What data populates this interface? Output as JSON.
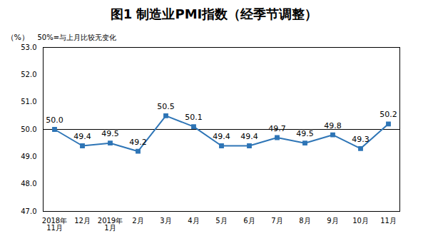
{
  "chart_data": {
    "type": "line",
    "title": "图1 制造业PMI指数（经季节调整）",
    "y_unit": "（%）",
    "annotation": "50%=与上月比较无变化",
    "reference_value": 50,
    "categories": [
      "2018年\n11月",
      "12月",
      "2019年\n1月",
      "2月",
      "3月",
      "4月",
      "5月",
      "6月",
      "7月",
      "8月",
      "9月",
      "10月",
      "11月"
    ],
    "values": [
      50.0,
      49.4,
      49.5,
      49.2,
      50.5,
      50.1,
      49.4,
      49.4,
      49.7,
      49.5,
      49.8,
      49.3,
      50.2
    ],
    "value_labels": [
      "50.0",
      "49.4",
      "49.5",
      "49.2",
      "50.5",
      "50.1",
      "49.4",
      "49.4",
      "49.7",
      "49.5",
      "49.8",
      "49.3",
      "50.2"
    ],
    "color": "#2e75b6",
    "marker": "square",
    "data_labels": true,
    "grid": false,
    "ylim": [
      47,
      53
    ],
    "yticks": [
      47,
      48,
      49,
      50,
      51,
      52,
      53
    ]
  }
}
